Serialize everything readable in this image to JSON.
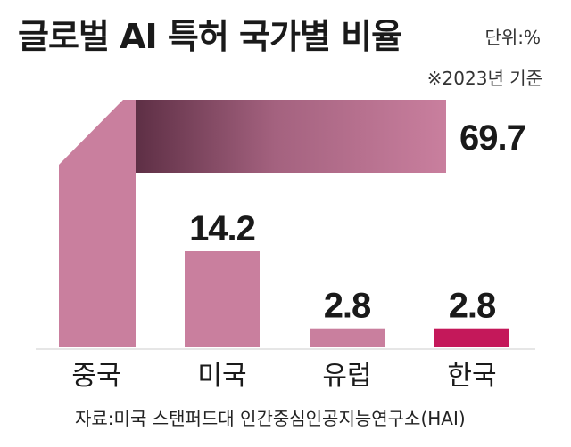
{
  "header": {
    "title": "글로벌 AI 특허 국가별 비율",
    "unit": "단위:%",
    "note": "※2023년 기준"
  },
  "footer": {
    "source": "자료:미국 스탠퍼드대 인간중심인공지능연구소(HAI)"
  },
  "colors": {
    "bar": "#c97f9e",
    "bar_shadow": "#6e3a52",
    "highlight": "#c4185a",
    "baseline": "#cccccc"
  },
  "chart_data": {
    "type": "bar",
    "title": "글로벌 AI 특허 국가별 비율",
    "categories": [
      "중국",
      "미국",
      "유럽",
      "한국"
    ],
    "values": [
      69.7,
      14.2,
      2.8,
      2.8
    ],
    "value_labels": [
      "69.7",
      "14.2",
      "2.8",
      "2.8"
    ],
    "highlight_category": "한국",
    "xlabel": "",
    "ylabel": ""
  }
}
